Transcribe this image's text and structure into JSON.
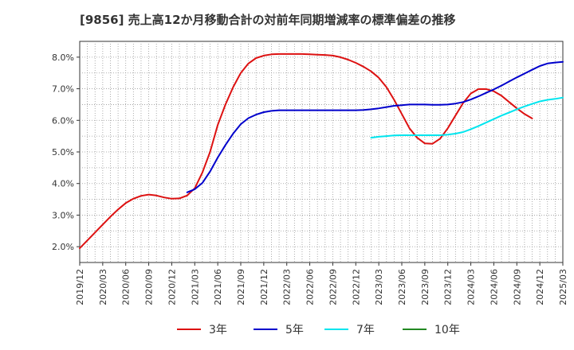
{
  "chart_data": {
    "type": "line",
    "title": "[9856]  売上高12か月移動合計の対前年同期増減率の標準偏差の推移",
    "xlabel": "",
    "ylabel": "",
    "ylim": [
      1.5,
      8.5
    ],
    "yticks": [
      2.0,
      3.0,
      4.0,
      5.0,
      6.0,
      7.0,
      8.0
    ],
    "ytick_labels": [
      "2.0%",
      "3.0%",
      "4.0%",
      "5.0%",
      "6.0%",
      "7.0%",
      "8.0%"
    ],
    "x_tick_labels": [
      "2019/12",
      "2020/03",
      "2020/06",
      "2020/09",
      "2020/12",
      "2021/03",
      "2021/06",
      "2021/09",
      "2021/12",
      "2022/03",
      "2022/06",
      "2022/09",
      "2022/12",
      "2023/03",
      "2023/06",
      "2023/09",
      "2023/12",
      "2024/03",
      "2024/06",
      "2024/09",
      "2024/12",
      "2025/03"
    ],
    "x_start": "2019/12",
    "grid": true,
    "legend_position": "bottom",
    "series": [
      {
        "name": "3年",
        "color": "#dd1111",
        "x_start_index": 0,
        "values": [
          1.95,
          2.2,
          2.45,
          2.7,
          2.95,
          3.18,
          3.38,
          3.52,
          3.61,
          3.65,
          3.62,
          3.56,
          3.52,
          3.53,
          3.62,
          3.85,
          4.35,
          5.0,
          5.85,
          6.5,
          7.05,
          7.5,
          7.8,
          7.97,
          8.05,
          8.09,
          8.1,
          8.1,
          8.1,
          8.1,
          8.09,
          8.08,
          8.07,
          8.05,
          8.0,
          7.92,
          7.82,
          7.7,
          7.55,
          7.35,
          7.05,
          6.65,
          6.2,
          5.75,
          5.45,
          5.27,
          5.26,
          5.42,
          5.75,
          6.15,
          6.55,
          6.85,
          6.99,
          6.99,
          6.92,
          6.78,
          6.58,
          6.38,
          6.2,
          6.06
        ]
      },
      {
        "name": "5年",
        "color": "#0000cc",
        "x_start_index": 14,
        "values": [
          3.72,
          3.82,
          4.02,
          4.38,
          4.82,
          5.22,
          5.58,
          5.88,
          6.07,
          6.18,
          6.26,
          6.3,
          6.32,
          6.32,
          6.32,
          6.32,
          6.32,
          6.32,
          6.32,
          6.32,
          6.32,
          6.32,
          6.32,
          6.33,
          6.35,
          6.38,
          6.42,
          6.46,
          6.48,
          6.5,
          6.5,
          6.5,
          6.49,
          6.49,
          6.5,
          6.53,
          6.58,
          6.66,
          6.76,
          6.87,
          6.98,
          7.1,
          7.23,
          7.36,
          7.48,
          7.6,
          7.72,
          7.8,
          7.83,
          7.85
        ]
      },
      {
        "name": "7年",
        "color": "#00e5ee",
        "x_start_index": 38,
        "values": [
          5.45,
          5.48,
          5.5,
          5.52,
          5.53,
          5.53,
          5.53,
          5.53,
          5.53,
          5.53,
          5.55,
          5.58,
          5.63,
          5.72,
          5.82,
          5.93,
          6.04,
          6.15,
          6.25,
          6.35,
          6.44,
          6.52,
          6.6,
          6.65,
          6.68,
          6.72
        ]
      },
      {
        "name": "10年",
        "color": "#228822",
        "x_start_index": 0,
        "values": []
      }
    ]
  }
}
